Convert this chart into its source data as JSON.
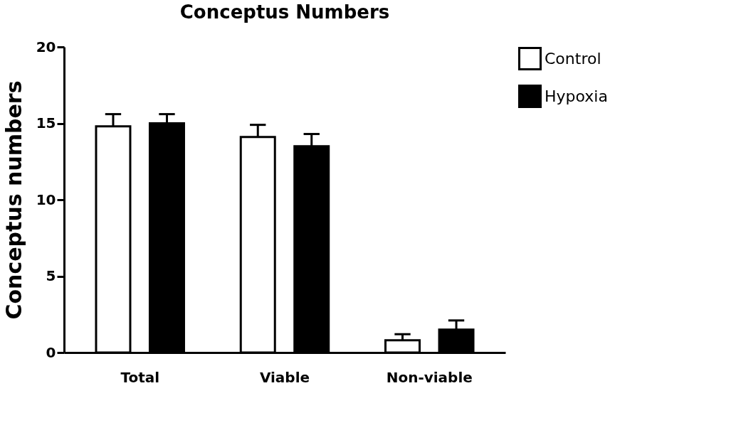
{
  "chart_data": {
    "type": "bar",
    "title": "Conceptus Numbers",
    "ylabel": "Conceptus numbers",
    "categories": [
      "Total",
      "Viable",
      "Non-viable"
    ],
    "series": [
      {
        "name": "Control",
        "color": "#ffffff",
        "values": [
          14.8,
          14.1,
          0.8
        ],
        "errors": [
          [
            14.8,
            15.6
          ],
          [
            14.1,
            14.9
          ],
          [
            0.8,
            1.2
          ]
        ]
      },
      {
        "name": "Hypoxia",
        "color": "#000000",
        "values": [
          15.0,
          13.5,
          1.5
        ],
        "errors": [
          [
            15.0,
            15.6
          ],
          [
            13.5,
            14.3
          ],
          [
            1.5,
            2.1
          ]
        ]
      }
    ],
    "ylim": [
      0,
      20
    ],
    "yticks": [
      0,
      5,
      10,
      15,
      20
    ],
    "grid": false,
    "legend": "top right"
  }
}
